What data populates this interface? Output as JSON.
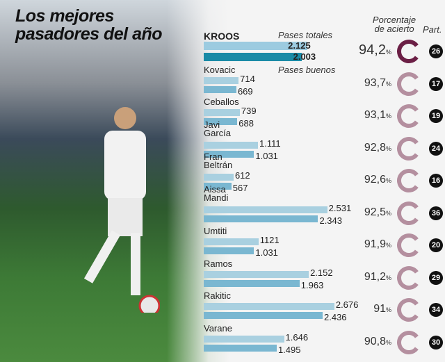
{
  "title_line1": "Los mejores",
  "title_line2": "pasadores del año",
  "headers": {
    "total": "Pases totales",
    "good": "Pases buenos",
    "pct_line1": "Porcentaje",
    "pct_line2": "de acierto",
    "part": "Part."
  },
  "colors": {
    "total_bar": "#a9d0e0",
    "good_bar": "#7ab7d1",
    "kroos_total": "#9ccbe0",
    "kroos_good": "#1a8aa6",
    "ring_highlight": "#6b1f45",
    "ring": "#b48f9f"
  },
  "chart_data": {
    "type": "bar",
    "categories": [
      "KROOS",
      "Kovacic",
      "Ceballos",
      "Javi\nGarcía",
      "Fran\nBeltrán",
      "Aissa\nMandi",
      "Umtiti",
      "Ramos",
      "Rakitic",
      "Varane"
    ],
    "series": [
      {
        "name": "Pases totales",
        "values": [
          2125,
          714,
          739,
          1111,
          612,
          2531,
          1121,
          2152,
          2676,
          1646
        ],
        "labels": [
          "2.125",
          "714",
          "739",
          "1.111",
          "612",
          "2.531",
          "1121",
          "2.152",
          "2.676",
          "1.646"
        ]
      },
      {
        "name": "Pases buenos",
        "values": [
          2003,
          669,
          688,
          1031,
          567,
          2343,
          1031,
          1963,
          2436,
          1495
        ],
        "labels": [
          "2.003",
          "669",
          "688",
          "1.031",
          "567",
          "2.343",
          "1.031",
          "1.963",
          "2.436",
          "1.495"
        ]
      }
    ],
    "accuracy_pct": [
      "94,2",
      "93,7",
      "93,1",
      "92,8",
      "92,6",
      "92,5",
      "91,9",
      "91,2",
      "91",
      "90,8"
    ],
    "pct_unit": "%",
    "matches": [
      "26",
      "17",
      "19",
      "24",
      "16",
      "36",
      "20",
      "29",
      "34",
      "30"
    ]
  }
}
